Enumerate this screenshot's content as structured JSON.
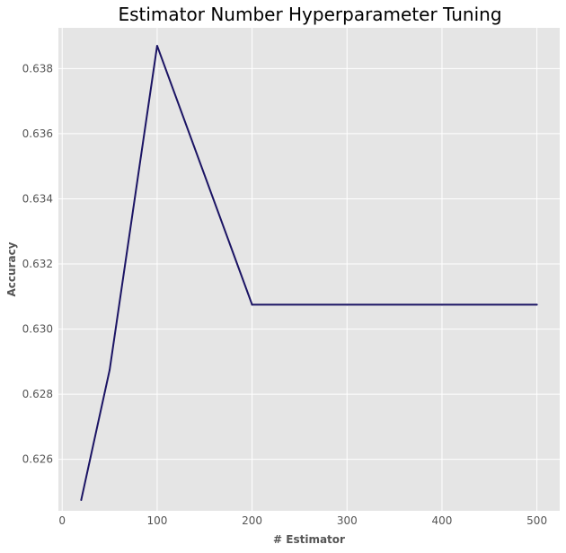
{
  "chart_data": {
    "type": "line",
    "title": "Estimator Number Hyperparameter Tuning",
    "xlabel": "# Estimator",
    "ylabel": "Accuracy",
    "xlim": [
      -4,
      524
    ],
    "ylim": [
      0.62442,
      0.63925
    ],
    "xticks": [
      0,
      100,
      200,
      300,
      400,
      500
    ],
    "yticks": [
      0.626,
      0.628,
      0.63,
      0.632,
      0.634,
      0.636,
      0.638
    ],
    "xtick_labels": [
      "0",
      "100",
      "200",
      "300",
      "400",
      "500"
    ],
    "ytick_labels": [
      "0.626",
      "0.628",
      "0.630",
      "0.632",
      "0.634",
      "0.636",
      "0.638"
    ],
    "grid": true,
    "series": [
      {
        "x": [
          20,
          50,
          100,
          200,
          300,
          400,
          500
        ],
        "y": [
          0.62475,
          0.62875,
          0.6387,
          0.63075,
          0.63075,
          0.63075,
          0.63075
        ]
      }
    ]
  },
  "colors": {
    "background": "#e5e5e5",
    "grid": "#ffffff",
    "line": "#1b1464",
    "tick_text": "#555555"
  }
}
